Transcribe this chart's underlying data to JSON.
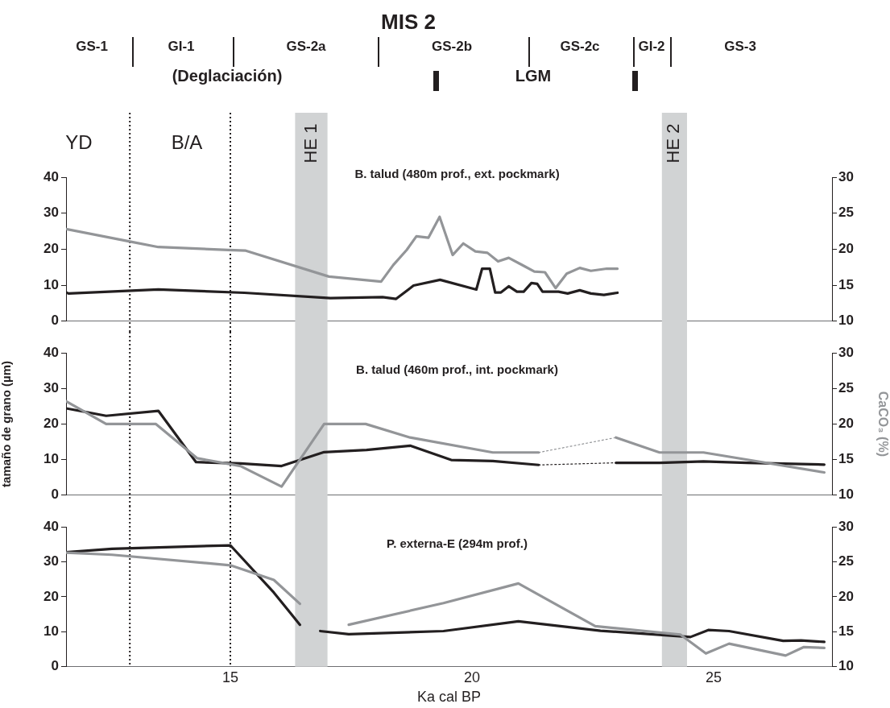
{
  "chart_data": [
    {
      "type": "other",
      "title": "MIS 2",
      "annotations": [
        "GS-1",
        "GI-1",
        "GS-2a",
        "GS-2b",
        "GS-2c",
        "GI-2",
        "GS-3",
        "(Deglaciación)",
        "LGM"
      ]
    },
    {
      "type": "line",
      "title": "B. talud (480m prof., ext. pockmark)",
      "xlim": [
        11.6,
        27.45
      ],
      "ylim": [
        0,
        40
      ],
      "yticks": [
        0,
        10,
        20,
        30,
        40
      ],
      "y2lim": [
        10,
        30
      ],
      "y2ticks": [
        10,
        15,
        20,
        25,
        30
      ],
      "tick_labels": "y",
      "marker": "none",
      "legend": false,
      "series": [
        {
          "color": "#939598",
          "axis": "y2",
          "x": [
            11.6,
            12.9,
            13.51,
            14.96,
            15.32,
            17.04,
            18.12,
            18.37,
            18.65,
            18.85,
            19.1,
            19.33,
            19.6,
            19.82,
            20.07,
            20.32,
            20.54,
            20.76,
            21.07,
            21.29,
            21.51,
            21.73,
            21.96,
            22.23,
            22.46,
            22.79,
            23.01
          ],
          "values": [
            22.8,
            21.1,
            20.3,
            19.9,
            19.8,
            16.2,
            15.5,
            17.8,
            19.9,
            21.8,
            21.6,
            24.5,
            19.2,
            20.8,
            19.7,
            19.5,
            18.3,
            18.8,
            17.7,
            16.9,
            16.8,
            14.6,
            16.6,
            17.4,
            17.0,
            17.3,
            17.3
          ]
        },
        {
          "color": "#231f20",
          "axis": "y",
          "x": [
            11.6,
            11.65,
            13.51,
            15.29,
            17.07,
            18.15,
            18.43,
            18.79,
            19.34,
            20.09,
            20.21,
            20.37,
            20.48,
            20.6,
            20.76,
            20.93,
            21.07,
            21.23,
            21.35,
            21.46,
            21.79,
            21.98,
            22.23,
            22.46,
            22.73,
            23.01
          ],
          "values": [
            8.0,
            7.7,
            8.8,
            7.9,
            6.4,
            6.7,
            6.2,
            9.9,
            11.5,
            8.8,
            14.6,
            14.6,
            8.0,
            8.0,
            9.7,
            8.2,
            8.2,
            10.6,
            10.4,
            8.2,
            8.2,
            7.7,
            8.6,
            7.7,
            7.3,
            7.9
          ]
        }
      ],
      "bands": [
        {
          "axis": "x",
          "from": 16.34,
          "to": 17.01,
          "label": "HE 1",
          "color": "#d1d3d4"
        },
        {
          "axis": "x",
          "from": 23.93,
          "to": 24.45,
          "label": "HE 2",
          "color": "#d1d3d4"
        }
      ],
      "ref_lines": [
        {
          "axis": "x",
          "value": 12.92,
          "line_style": "dotted",
          "color": "#231f20"
        },
        {
          "axis": "x",
          "value": 15.0,
          "line_style": "dotted",
          "color": "#231f20"
        }
      ],
      "annotations": [
        "YD",
        "B/A"
      ]
    },
    {
      "type": "line",
      "title": "B. talud (460m prof., int. pockmark)",
      "xlim": [
        11.6,
        27.45
      ],
      "ylim": [
        0,
        40
      ],
      "yticks": [
        0,
        10,
        20,
        30,
        40
      ],
      "y2lim": [
        10,
        30
      ],
      "y2ticks": [
        10,
        15,
        20,
        25,
        30
      ],
      "tick_labels": "y",
      "marker": "none",
      "legend": false,
      "ylabel": "tamaño de grano (µm)",
      "y2label": "CaCO₃ (%)",
      "series": [
        {
          "color": "#939598",
          "axis": "y2",
          "x": [
            11.6,
            12.43,
            13.46,
            14.31,
            15.21,
            16.06,
            16.94,
            17.8,
            18.72,
            20.43,
            21.38
          ],
          "values": [
            23.2,
            20.0,
            20.0,
            15.2,
            14.1,
            11.2,
            20.0,
            20.0,
            18.1,
            16.0,
            16.0
          ]
        },
        {
          "color": "#939598",
          "axis": "y2",
          "line_style": "dotted",
          "x": [
            21.38,
            22.98
          ],
          "values": [
            16.0,
            18.1
          ]
        },
        {
          "color": "#939598",
          "axis": "y2",
          "x": [
            22.98,
            23.88,
            24.79,
            27.29
          ],
          "values": [
            18.1,
            16.0,
            16.0,
            13.2
          ]
        },
        {
          "color": "#231f20",
          "axis": "y",
          "x": [
            11.6,
            12.43,
            13.51,
            14.29,
            15.21,
            16.06,
            16.94,
            17.82,
            18.72,
            19.57,
            20.43,
            21.38
          ],
          "values": [
            24.4,
            22.3,
            23.7,
            9.3,
            8.9,
            8.2,
            12.1,
            12.7,
            13.9,
            9.9,
            9.6,
            8.5
          ]
        },
        {
          "color": "#231f20",
          "axis": "y",
          "line_style": "dotted",
          "x": [
            21.38,
            22.98
          ],
          "values": [
            8.5,
            9.1
          ]
        },
        {
          "color": "#231f20",
          "axis": "y",
          "x": [
            22.98,
            23.88,
            24.79,
            25.69,
            27.29
          ],
          "values": [
            9.1,
            9.1,
            9.5,
            9.1,
            8.6
          ]
        }
      ],
      "bands": [
        {
          "axis": "x",
          "from": 16.34,
          "to": 17.01,
          "color": "#d1d3d4"
        },
        {
          "axis": "x",
          "from": 23.93,
          "to": 24.45,
          "color": "#d1d3d4"
        }
      ],
      "ref_lines": [
        {
          "axis": "x",
          "value": 12.92,
          "line_style": "dotted",
          "color": "#231f20"
        },
        {
          "axis": "x",
          "value": 15.0,
          "line_style": "dotted",
          "color": "#231f20"
        }
      ]
    },
    {
      "type": "line",
      "title": "P. externa-E (294m prof.)",
      "xlabel": "Ka cal BP",
      "xlim": [
        11.6,
        27.45
      ],
      "xticks": [
        15,
        20,
        25
      ],
      "ylim": [
        0,
        40
      ],
      "yticks": [
        0,
        10,
        20,
        30,
        40
      ],
      "y2lim": [
        10,
        30
      ],
      "y2ticks": [
        10,
        15,
        20,
        25,
        30
      ],
      "marker": "none",
      "legend": false,
      "series": [
        {
          "color": "#939598",
          "axis": "y2",
          "x": [
            11.6,
            12.55,
            15.0,
            15.9,
            16.44,
            16.91,
            17.45,
            19.41,
            20.96,
            22.55,
            24.31,
            24.84,
            25.32,
            26.49,
            26.86,
            27.29
          ],
          "values": [
            26.3,
            26.0,
            24.5,
            22.4,
            19.0,
            null,
            16.0,
            19.1,
            21.9,
            15.8,
            14.6,
            11.9,
            13.3,
            11.6,
            12.8,
            12.7
          ]
        },
        {
          "color": "#231f20",
          "axis": "y",
          "x": [
            11.6,
            12.55,
            15.0,
            15.9,
            16.44,
            16.65,
            16.86,
            17.45,
            19.41,
            20.96,
            22.66,
            24.52,
            24.89,
            25.32,
            26.44,
            26.81,
            27.29
          ],
          "values": [
            32.7,
            33.7,
            34.7,
            21.2,
            12.0,
            null,
            10.2,
            9.3,
            10.2,
            13.0,
            10.3,
            8.5,
            10.5,
            10.2,
            7.4,
            7.5,
            7.1
          ]
        }
      ],
      "bands": [
        {
          "axis": "x",
          "from": 16.34,
          "to": 17.01,
          "color": "#d1d3d4"
        },
        {
          "axis": "x",
          "from": 23.93,
          "to": 24.45,
          "color": "#d1d3d4"
        }
      ],
      "ref_lines": [
        {
          "axis": "x",
          "value": 12.92,
          "line_style": "dotted",
          "color": "#231f20"
        },
        {
          "axis": "x",
          "value": 15.0,
          "line_style": "dotted",
          "color": "#231f20"
        }
      ]
    }
  ]
}
